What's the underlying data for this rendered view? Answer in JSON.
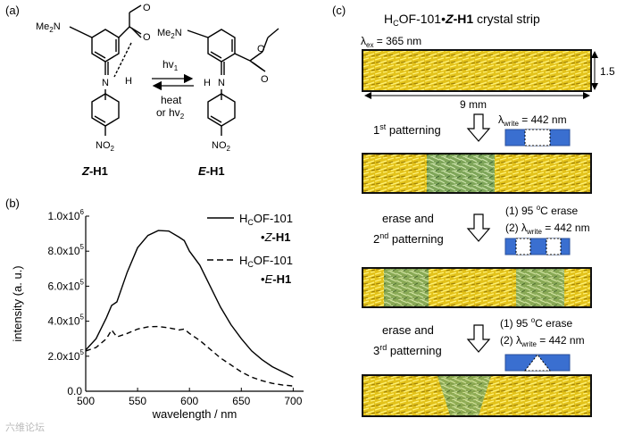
{
  "panel_a": {
    "label": "(a)",
    "z_name_prefix": "Z",
    "z_name_suffix": "-H1",
    "e_name_prefix": "E",
    "e_name_suffix": "-H1",
    "forward": "hv",
    "forward_sub": "1",
    "back_1": "heat",
    "back_2": "or hv",
    "back_sub": "2",
    "atoms": {
      "nme2": "Me",
      "nme2_sub": "2",
      "nme2_n": "N",
      "o": "O",
      "h": "H",
      "n": "N",
      "no2": "NO",
      "no2_sub": "2"
    }
  },
  "panel_b": {
    "label": "(b)",
    "legend": [
      {
        "style": "solid",
        "line1": "H",
        "line1_sub": "C",
        "line1_rest": "OF-101",
        "line2_pre": "•",
        "line2_italic": "Z",
        "line2_bold": "-H1"
      },
      {
        "style": "dashed",
        "line1": "H",
        "line1_sub": "C",
        "line1_rest": "OF-101",
        "line2_pre": "•",
        "line2_italic": "E",
        "line2_bold": "-H1"
      }
    ]
  },
  "chart_data": {
    "type": "line",
    "xlabel": "wavelength / nm",
    "ylabel": "intensity (a. u.)",
    "xlim": [
      500,
      710
    ],
    "ylim": [
      0,
      1000000
    ],
    "xticks": [
      "500",
      "550",
      "600",
      "650",
      "700"
    ],
    "yticks": [
      {
        "v": 0,
        "m": "0.0",
        "e": ""
      },
      {
        "v": 200000,
        "m": "2.0x10",
        "e": "5"
      },
      {
        "v": 400000,
        "m": "4.0x10",
        "e": "5"
      },
      {
        "v": 600000,
        "m": "6.0x10",
        "e": "5"
      },
      {
        "v": 800000,
        "m": "8.0x10",
        "e": "5"
      },
      {
        "v": 1000000,
        "m": "1.0x10",
        "e": "6"
      }
    ],
    "series": [
      {
        "name": "HcOF-101•Z-H1",
        "style": "solid",
        "x": [
          500,
          510,
          520,
          525,
          530,
          540,
          550,
          560,
          570,
          580,
          590,
          595,
          600,
          610,
          620,
          630,
          640,
          650,
          660,
          670,
          680,
          690,
          700
        ],
        "y": [
          235000,
          300000,
          420000,
          490000,
          510000,
          680000,
          820000,
          890000,
          918000,
          915000,
          880000,
          860000,
          800000,
          720000,
          600000,
          480000,
          380000,
          300000,
          230000,
          180000,
          140000,
          110000,
          80000
        ]
      },
      {
        "name": "HcOF-101•E-H1",
        "style": "dashed",
        "x": [
          500,
          510,
          520,
          525,
          530,
          540,
          550,
          560,
          570,
          580,
          590,
          595,
          600,
          610,
          620,
          630,
          640,
          650,
          660,
          670,
          680,
          690,
          700
        ],
        "y": [
          230000,
          250000,
          300000,
          350000,
          310000,
          330000,
          355000,
          368000,
          370000,
          362000,
          350000,
          355000,
          330000,
          290000,
          240000,
          190000,
          150000,
          110000,
          80000,
          60000,
          45000,
          35000,
          30000
        ]
      }
    ]
  },
  "panel_c": {
    "label": "(c)",
    "title_h": "H",
    "title_c": "C",
    "title_mid": "OF-101•",
    "title_z": "Z",
    "title_h1": "-H1",
    "title_tail": " crystal strip",
    "lambda_ex": "λ",
    "lambda_ex_sub": "ex",
    "lambda_ex_val": " = 365 nm",
    "height_dim": "1.5",
    "width_dim": "9 mm",
    "steps": [
      {
        "line1": "1",
        "line1_sup": "st",
        "line1_rest": " patterning",
        "line0": ""
      },
      {
        "line0": "erase and",
        "line1": "2",
        "line1_sup": "nd",
        "line1_rest": " patterning"
      },
      {
        "line0": "erase and",
        "line1": "3",
        "line1_sup": "rd",
        "line1_rest": " patterning"
      }
    ],
    "write_lambda": "λ",
    "write_sub": "write",
    "write_val": " = 442 nm",
    "erase_pre": "(1) 95 ",
    "erase_deg": "o",
    "erase_post": "C erase",
    "item2": "(2) "
  },
  "watermark": "六维论坛"
}
